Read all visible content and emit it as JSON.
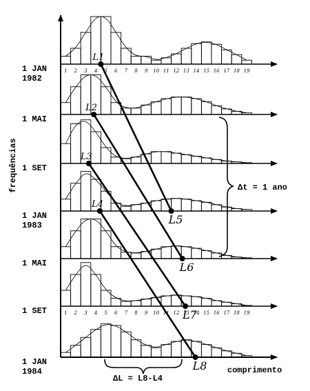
{
  "chart_data": {
    "type": "bar",
    "ylabel": "frequências",
    "xlabel": "comprimento",
    "x_ticks_top": [
      "1",
      "2",
      "3",
      "4",
      "5",
      "6",
      "7",
      "8",
      "9",
      "10",
      "11",
      "12",
      "13",
      "14",
      "15",
      "16",
      "17",
      "18",
      "19"
    ],
    "x_ticks_bottom": [
      "1",
      "2",
      "3",
      "4",
      "5",
      "6",
      "7",
      "8",
      "9",
      "10",
      "11",
      "12",
      "13",
      "14",
      "15",
      "16",
      "17",
      "18",
      "19"
    ],
    "panels": [
      {
        "date_line1": "1 JAN",
        "date_line2": "1982",
        "values": [
          1,
          2,
          4,
          6,
          6,
          4,
          2,
          1,
          1,
          0.5,
          0.8,
          1.3,
          2,
          2.6,
          2.8,
          2.5,
          1.8,
          1.2,
          0.5
        ]
      },
      {
        "date_line1": "1 MAI",
        "date_line2": "",
        "values": [
          1.5,
          3.5,
          5,
          5,
          3.5,
          1.5,
          0.8,
          0.8,
          1.2,
          1.6,
          2,
          2.2,
          2.2,
          2,
          1.6,
          1.1,
          0.7,
          0.4,
          0.2
        ]
      },
      {
        "date_line1": "1 SET",
        "date_line2": "",
        "values": [
          2.5,
          5,
          5.5,
          4,
          2,
          0.8,
          0.6,
          0.8,
          1.2,
          1.5,
          1.5,
          1.3,
          1.1,
          0.9,
          0.7,
          0.5,
          0.3,
          0.2,
          0.1
        ]
      },
      {
        "date_line1": "1 JAN",
        "date_line2": "1983",
        "values": [
          1.5,
          3.5,
          5,
          4,
          2.5,
          1,
          0.6,
          0.8,
          1,
          1.3,
          1.5,
          1.6,
          1.5,
          1.3,
          1.1,
          0.8,
          0.5,
          0.3,
          0.2
        ]
      },
      {
        "date_line1": "1 MAI",
        "date_line2": "",
        "values": [
          1.5,
          3.5,
          5,
          5,
          3.5,
          1.5,
          0.8,
          0.7,
          0.9,
          1.2,
          1.5,
          1.6,
          1.5,
          1.3,
          1,
          0.7,
          0.4,
          0.2,
          0.1
        ]
      },
      {
        "date_line1": "1 SET",
        "date_line2": "",
        "values": [
          2,
          4,
          5.5,
          4,
          2,
          1,
          0.6,
          0.7,
          0.9,
          1.1,
          1.3,
          1.4,
          1.3,
          1.2,
          1,
          0.7,
          0.5,
          0.3,
          0.1
        ]
      },
      {
        "date_line1": "1 JAN",
        "date_line2": "1984",
        "values": [
          0.6,
          1.5,
          2.5,
          3.5,
          4.2,
          4,
          3.2,
          2.2,
          1.5,
          1.2,
          1.6,
          2,
          2.2,
          2,
          1.6,
          1.2,
          0.8,
          0.5,
          0.2
        ]
      }
    ],
    "annotations": [
      {
        "label": "L1",
        "panel": 0,
        "length": 4.5
      },
      {
        "label": "L2",
        "panel": 1,
        "length": 3.8
      },
      {
        "label": "L3",
        "panel": 2,
        "length": 3.3
      },
      {
        "label": "L4",
        "panel": 3,
        "length": 4.4
      },
      {
        "label": "L5",
        "panel": 3,
        "length": 11.5
      },
      {
        "label": "L6",
        "panel": 4,
        "length": 12.6
      },
      {
        "label": "L7",
        "panel": 5,
        "length": 12.9
      },
      {
        "label": "L8",
        "panel": 6,
        "length": 13.9
      }
    ],
    "links": [
      [
        "L1",
        "L5"
      ],
      [
        "L2",
        "L6"
      ],
      [
        "L3",
        "L7"
      ],
      [
        "L4",
        "L8"
      ]
    ],
    "delta_t_label": "Δt = 1 ano",
    "delta_l_label": "ΔL = L8-L4",
    "grid": false
  }
}
